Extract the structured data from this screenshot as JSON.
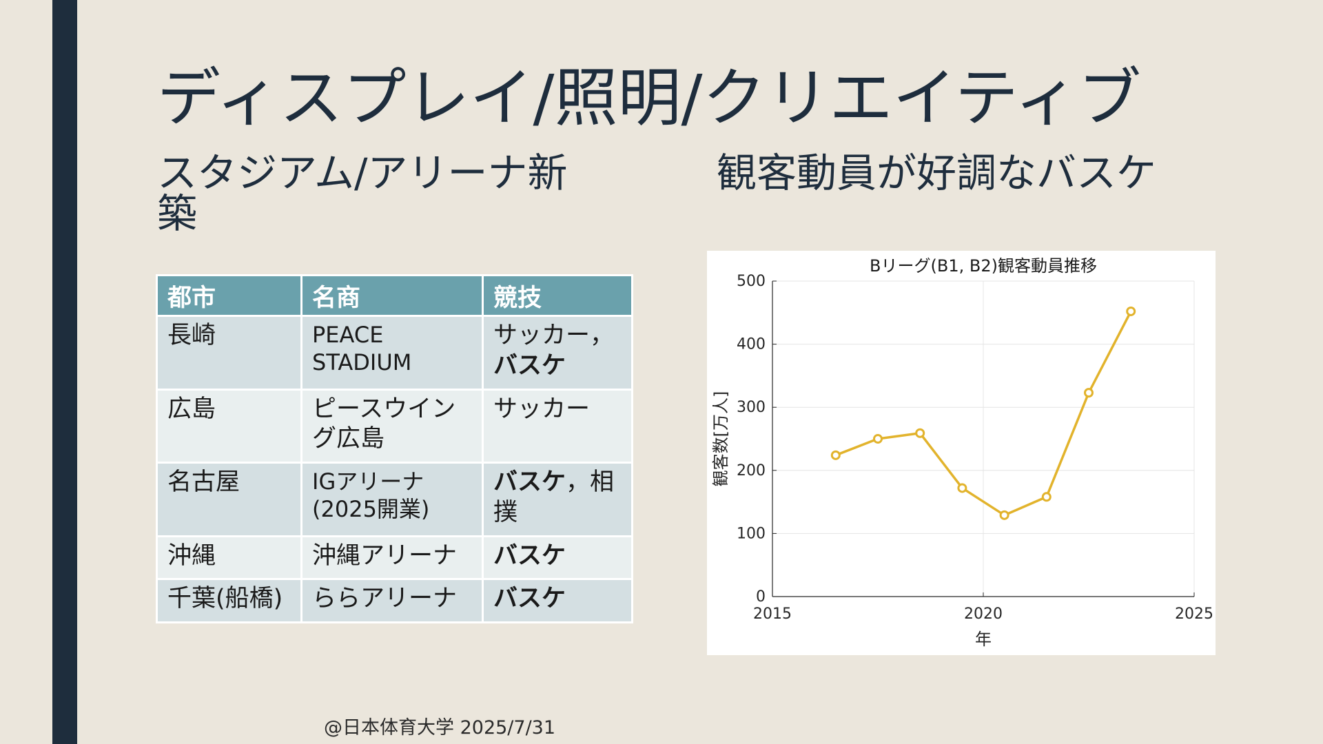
{
  "slide": {
    "title": "ディスプレイ/照明/クリエイティブ",
    "subtitle_left": "スタジアム/アリーナ新築",
    "subtitle_right": "観客動員が好調なバスケ",
    "footer": "@日本体育大学 2025/7/31"
  },
  "table": {
    "headers": [
      "都市",
      "名商",
      "競技"
    ],
    "rows": [
      {
        "city": "長崎",
        "venue": "PEACE STADIUM",
        "sport_a": "サッカー，",
        "sport_b": "バスケ"
      },
      {
        "city": "広島",
        "venue": "ピースウイング広島",
        "sport_a": "サッカー",
        "sport_b": ""
      },
      {
        "city": "名古屋",
        "venue": "IGアリーナ(2025開業)",
        "sport_a": "",
        "sport_b": "バスケ",
        "sport_c": "，相撲"
      },
      {
        "city": "沖縄",
        "venue": "沖縄アリーナ",
        "sport_a": "",
        "sport_b": "バスケ"
      },
      {
        "city": "千葉(船橋)",
        "venue": "ららアリーナ",
        "sport_a": "",
        "sport_b": "バスケ"
      }
    ]
  },
  "colors": {
    "accent_bar": "#1e2d3d",
    "table_header": "#6aa1ac",
    "line": "#e2b32c"
  },
  "chart_data": {
    "type": "line",
    "title": "Bリーグ(B1, B2)観客動員推移",
    "xlabel": "年",
    "ylabel": "観客数[万人]",
    "xlim": [
      2015,
      2025
    ],
    "ylim": [
      0,
      500
    ],
    "xticks": [
      2015,
      2020,
      2025
    ],
    "yticks": [
      0,
      100,
      200,
      300,
      400,
      500
    ],
    "grid": true,
    "series": [
      {
        "x": [
          2016.5,
          2017.5,
          2018.5,
          2019.5,
          2020.5,
          2021.5,
          2022.5,
          2023.5
        ],
        "y": [
          224,
          250,
          259,
          172,
          129,
          158,
          323,
          452
        ]
      }
    ]
  }
}
